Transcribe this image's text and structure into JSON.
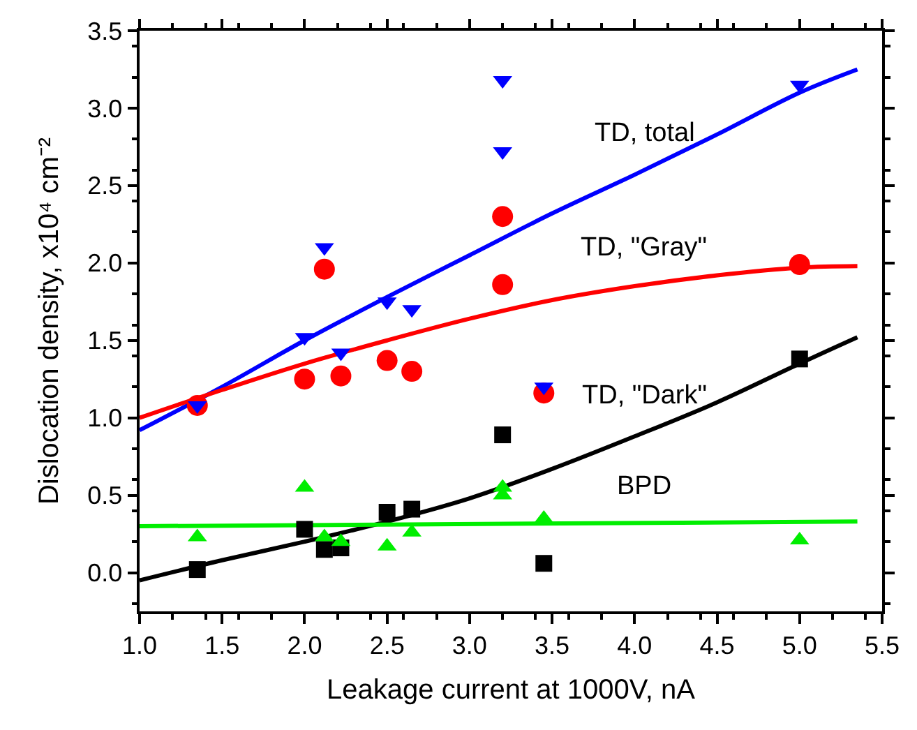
{
  "chart_data": {
    "type": "scatter",
    "xlabel": "Leakage current at 1000V, nA",
    "ylabel": "Dislocation density, x10⁴ cm⁻²",
    "xlim": [
      1.0,
      5.5
    ],
    "xticks": [
      {
        "value": 1,
        "label": "1.0"
      },
      {
        "value": 1.5,
        "label": "1.5"
      },
      {
        "value": 2,
        "label": "2.0"
      },
      {
        "value": 2.5,
        "label": "2.5"
      },
      {
        "value": 3,
        "label": "3.0"
      },
      {
        "value": 3.5,
        "label": "3.5"
      },
      {
        "value": 4,
        "label": "4.0"
      },
      {
        "value": 4.5,
        "label": "4.5"
      },
      {
        "value": 5,
        "label": "5.0"
      },
      {
        "value": 5.5,
        "label": "5.5"
      }
    ],
    "ylim": [
      -0.25,
      3.5
    ],
    "yticks": [
      {
        "value": 0,
        "label": "0.0"
      },
      {
        "value": 0.5,
        "label": "0.5"
      },
      {
        "value": 1,
        "label": "1.0"
      },
      {
        "value": 1.5,
        "label": "1.5"
      },
      {
        "value": 2,
        "label": "2.0"
      },
      {
        "value": 2.5,
        "label": "2.5"
      },
      {
        "value": 3,
        "label": "3.0"
      },
      {
        "value": 3.5,
        "label": "3.5"
      }
    ],
    "grid": false,
    "legend": false,
    "series": [
      {
        "type": "line",
        "name": "TD, total",
        "color": "#0000ff",
        "marker": "none",
        "x": [
          1.0,
          1.5,
          2.0,
          2.5,
          3.0,
          3.5,
          4.0,
          4.5,
          5.0,
          5.35
        ],
        "values": [
          0.92,
          1.2,
          1.5,
          1.78,
          2.05,
          2.32,
          2.57,
          2.83,
          3.1,
          3.25
        ]
      },
      {
        "type": "line",
        "name": "TD, \"Gray\"",
        "color": "#ff0000",
        "marker": "none",
        "x": [
          1.0,
          1.5,
          2.0,
          2.5,
          3.0,
          3.5,
          4.0,
          4.5,
          5.0,
          5.35
        ],
        "values": [
          1.0,
          1.18,
          1.35,
          1.5,
          1.64,
          1.76,
          1.85,
          1.92,
          1.97,
          1.98
        ]
      },
      {
        "type": "line",
        "name": "TD, \"Dark\"",
        "color": "#000000",
        "marker": "none",
        "x": [
          1.0,
          1.5,
          2.0,
          2.5,
          3.0,
          3.5,
          4.0,
          4.5,
          5.0,
          5.35
        ],
        "values": [
          -0.05,
          0.08,
          0.2,
          0.33,
          0.48,
          0.67,
          0.88,
          1.1,
          1.35,
          1.52
        ]
      },
      {
        "type": "line",
        "name": "BPD",
        "color": "#00ee00",
        "marker": "none",
        "x": [
          1.0,
          5.35
        ],
        "values": [
          0.3,
          0.33
        ]
      },
      {
        "color": "#ff0000",
        "marker": "circle",
        "x": [
          1.35,
          2.0,
          2.12,
          2.22,
          2.5,
          2.65,
          3.2,
          3.2,
          3.45,
          5.0
        ],
        "values": [
          1.08,
          1.25,
          1.96,
          1.27,
          1.37,
          1.3,
          2.3,
          1.86,
          1.16,
          1.99
        ]
      },
      {
        "color": "#0000ff",
        "marker": "triangle-down",
        "x": [
          1.35,
          2.0,
          2.12,
          2.22,
          2.5,
          2.65,
          3.2,
          3.2,
          3.45,
          5.0
        ],
        "values": [
          1.08,
          1.52,
          2.1,
          1.42,
          1.75,
          1.7,
          3.18,
          2.72,
          1.2,
          3.15
        ]
      },
      {
        "color": "#000000",
        "marker": "square",
        "x": [
          1.35,
          2.0,
          2.12,
          2.22,
          2.5,
          2.65,
          3.2,
          3.45,
          5.0
        ],
        "values": [
          0.02,
          0.28,
          0.15,
          0.16,
          0.39,
          0.41,
          0.89,
          0.06,
          1.38
        ]
      },
      {
        "color": "#00ee00",
        "marker": "triangle-up",
        "x": [
          1.35,
          2.0,
          2.12,
          2.22,
          2.5,
          2.65,
          3.2,
          3.2,
          3.45,
          5.0
        ],
        "values": [
          0.23,
          0.55,
          0.23,
          0.2,
          0.17,
          0.26,
          0.55,
          0.5,
          0.35,
          0.21
        ]
      }
    ]
  }
}
